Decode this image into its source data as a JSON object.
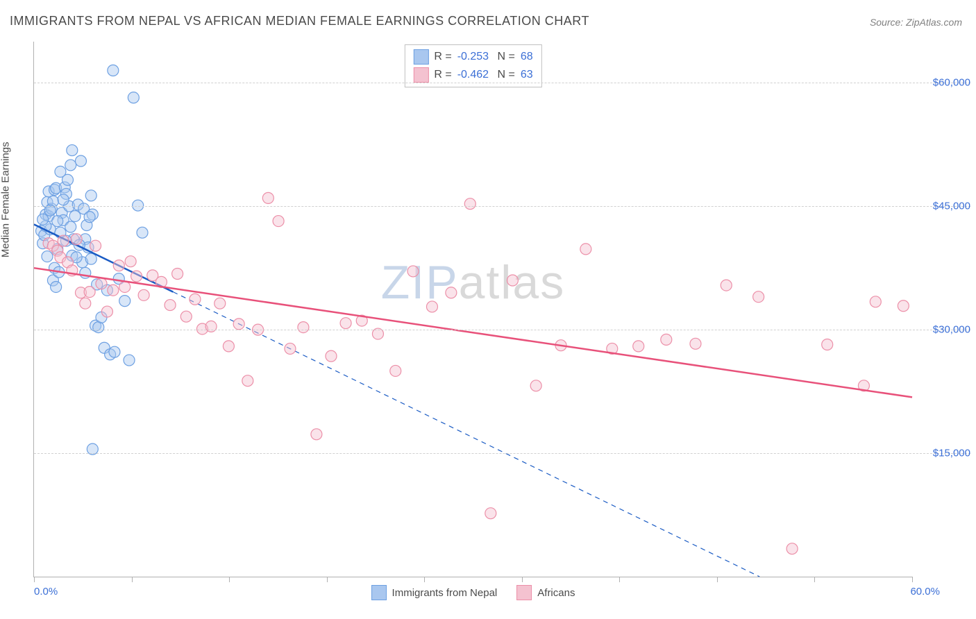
{
  "title": "IMMIGRANTS FROM NEPAL VS AFRICAN MEDIAN FEMALE EARNINGS CORRELATION CHART",
  "source": "Source: ZipAtlas.com",
  "ylabel": "Median Female Earnings",
  "watermark": {
    "part1": "ZIP",
    "part2": "atlas"
  },
  "chart": {
    "type": "scatter-with-regression",
    "background_color": "#ffffff",
    "grid_color": "#d0d0d0",
    "axis_color": "#b0b0b0",
    "label_color": "#3b6fd6",
    "text_color": "#4a4a4a",
    "xlim": [
      0,
      60
    ],
    "ylim": [
      0,
      65000
    ],
    "x_unit": "%",
    "xtick_positions": [
      0,
      6.67,
      13.33,
      20,
      26.67,
      33.33,
      40,
      46.67,
      53.33,
      60
    ],
    "xlim_labels": {
      "min": "0.0%",
      "max": "60.0%"
    },
    "y_gridlines": [
      15000,
      30000,
      45000,
      60000
    ],
    "y_tick_labels": [
      "$15,000",
      "$30,000",
      "$45,000",
      "$60,000"
    ],
    "title_fontsize": 18,
    "label_fontsize": 15,
    "marker_radius": 8,
    "marker_opacity": 0.45,
    "series": [
      {
        "name": "Immigrants from Nepal",
        "color_fill": "#a9c7ef",
        "color_stroke": "#6da0e2",
        "trend_color": "#1a5bc4",
        "trend_width": 2.5,
        "trend_solid_xrange": [
          0,
          9.5
        ],
        "trend_line": {
          "x1": 0,
          "y1": 42800,
          "x2": 60,
          "y2": -9000
        },
        "R": "-0.253",
        "N": "68",
        "points": [
          [
            0.5,
            42000
          ],
          [
            0.6,
            40500
          ],
          [
            0.7,
            41500
          ],
          [
            0.8,
            44000
          ],
          [
            0.9,
            45500
          ],
          [
            1.0,
            46800
          ],
          [
            1.0,
            43800
          ],
          [
            1.1,
            42200
          ],
          [
            1.2,
            44700
          ],
          [
            1.3,
            45600
          ],
          [
            1.4,
            47000
          ],
          [
            1.5,
            47200
          ],
          [
            1.3,
            36000
          ],
          [
            1.4,
            37500
          ],
          [
            1.6,
            39800
          ],
          [
            1.5,
            35200
          ],
          [
            1.7,
            37000
          ],
          [
            1.8,
            41800
          ],
          [
            1.9,
            44200
          ],
          [
            2.0,
            43300
          ],
          [
            2.1,
            47300
          ],
          [
            2.2,
            46500
          ],
          [
            2.4,
            45000
          ],
          [
            2.5,
            42500
          ],
          [
            2.6,
            39000
          ],
          [
            2.3,
            48200
          ],
          [
            2.5,
            50000
          ],
          [
            2.6,
            51800
          ],
          [
            2.8,
            43800
          ],
          [
            3.0,
            45200
          ],
          [
            3.2,
            50500
          ],
          [
            3.4,
            44700
          ],
          [
            3.5,
            41000
          ],
          [
            3.6,
            42700
          ],
          [
            3.9,
            46300
          ],
          [
            4.0,
            44000
          ],
          [
            3.8,
            43700
          ],
          [
            3.7,
            40000
          ],
          [
            4.2,
            30500
          ],
          [
            4.4,
            30300
          ],
          [
            4.6,
            31500
          ],
          [
            4.8,
            27800
          ],
          [
            5.0,
            34800
          ],
          [
            5.2,
            27000
          ],
          [
            5.5,
            27300
          ],
          [
            5.4,
            61500
          ],
          [
            6.2,
            33500
          ],
          [
            6.5,
            26300
          ],
          [
            6.8,
            58200
          ],
          [
            7.1,
            45100
          ],
          [
            7.4,
            41800
          ],
          [
            4.0,
            15500
          ],
          [
            5.8,
            36200
          ],
          [
            4.3,
            35500
          ],
          [
            3.3,
            38200
          ],
          [
            2.0,
            45800
          ],
          [
            1.6,
            43200
          ],
          [
            0.9,
            38900
          ],
          [
            1.1,
            44500
          ],
          [
            1.8,
            49200
          ],
          [
            0.8,
            42600
          ],
          [
            0.6,
            43400
          ],
          [
            2.9,
            38800
          ],
          [
            2.7,
            41000
          ],
          [
            3.1,
            40300
          ],
          [
            3.5,
            36900
          ],
          [
            3.9,
            38600
          ],
          [
            2.2,
            40800
          ]
        ]
      },
      {
        "name": "Africans",
        "color_fill": "#f4c2d0",
        "color_stroke": "#ec8fa8",
        "trend_color": "#e8517a",
        "trend_width": 2.5,
        "trend_solid_xrange": [
          0,
          60
        ],
        "trend_line": {
          "x1": 0,
          "y1": 37500,
          "x2": 60,
          "y2": 21800
        },
        "R": "-0.462",
        "N": "63",
        "points": [
          [
            1.0,
            40500
          ],
          [
            1.3,
            40200
          ],
          [
            1.6,
            39600
          ],
          [
            1.8,
            38800
          ],
          [
            2.0,
            40800
          ],
          [
            2.3,
            38200
          ],
          [
            2.6,
            37200
          ],
          [
            2.9,
            41000
          ],
          [
            3.2,
            34500
          ],
          [
            3.5,
            33200
          ],
          [
            3.8,
            34600
          ],
          [
            4.2,
            40200
          ],
          [
            4.6,
            35600
          ],
          [
            5.0,
            32200
          ],
          [
            5.4,
            34800
          ],
          [
            5.8,
            37800
          ],
          [
            6.2,
            35200
          ],
          [
            6.6,
            38300
          ],
          [
            7.0,
            36500
          ],
          [
            7.5,
            34200
          ],
          [
            8.1,
            36600
          ],
          [
            8.7,
            35800
          ],
          [
            9.3,
            33000
          ],
          [
            9.8,
            36800
          ],
          [
            10.4,
            31600
          ],
          [
            11.0,
            33700
          ],
          [
            11.5,
            30100
          ],
          [
            12.1,
            30400
          ],
          [
            12.7,
            33200
          ],
          [
            13.3,
            28000
          ],
          [
            14.0,
            30700
          ],
          [
            14.6,
            23800
          ],
          [
            15.3,
            30000
          ],
          [
            16.0,
            46000
          ],
          [
            16.7,
            43200
          ],
          [
            17.5,
            27700
          ],
          [
            18.4,
            30300
          ],
          [
            19.3,
            17300
          ],
          [
            20.3,
            26800
          ],
          [
            21.3,
            30800
          ],
          [
            22.4,
            31100
          ],
          [
            23.5,
            29500
          ],
          [
            24.7,
            25000
          ],
          [
            25.9,
            37100
          ],
          [
            27.2,
            32800
          ],
          [
            28.5,
            34500
          ],
          [
            29.8,
            45300
          ],
          [
            31.2,
            7700
          ],
          [
            32.7,
            36000
          ],
          [
            34.3,
            23200
          ],
          [
            36.0,
            28100
          ],
          [
            37.7,
            39800
          ],
          [
            39.5,
            27700
          ],
          [
            41.3,
            28000
          ],
          [
            43.2,
            28800
          ],
          [
            45.2,
            28300
          ],
          [
            47.3,
            35400
          ],
          [
            49.5,
            34000
          ],
          [
            51.8,
            3400
          ],
          [
            54.2,
            28200
          ],
          [
            56.7,
            23200
          ],
          [
            57.5,
            33400
          ],
          [
            59.4,
            32900
          ]
        ]
      }
    ],
    "bottom_legend": [
      {
        "label": "Immigrants from Nepal",
        "swatch_fill": "#a9c7ef",
        "swatch_stroke": "#6da0e2"
      },
      {
        "label": "Africans",
        "swatch_fill": "#f4c2d0",
        "swatch_stroke": "#ec8fa8"
      }
    ]
  }
}
